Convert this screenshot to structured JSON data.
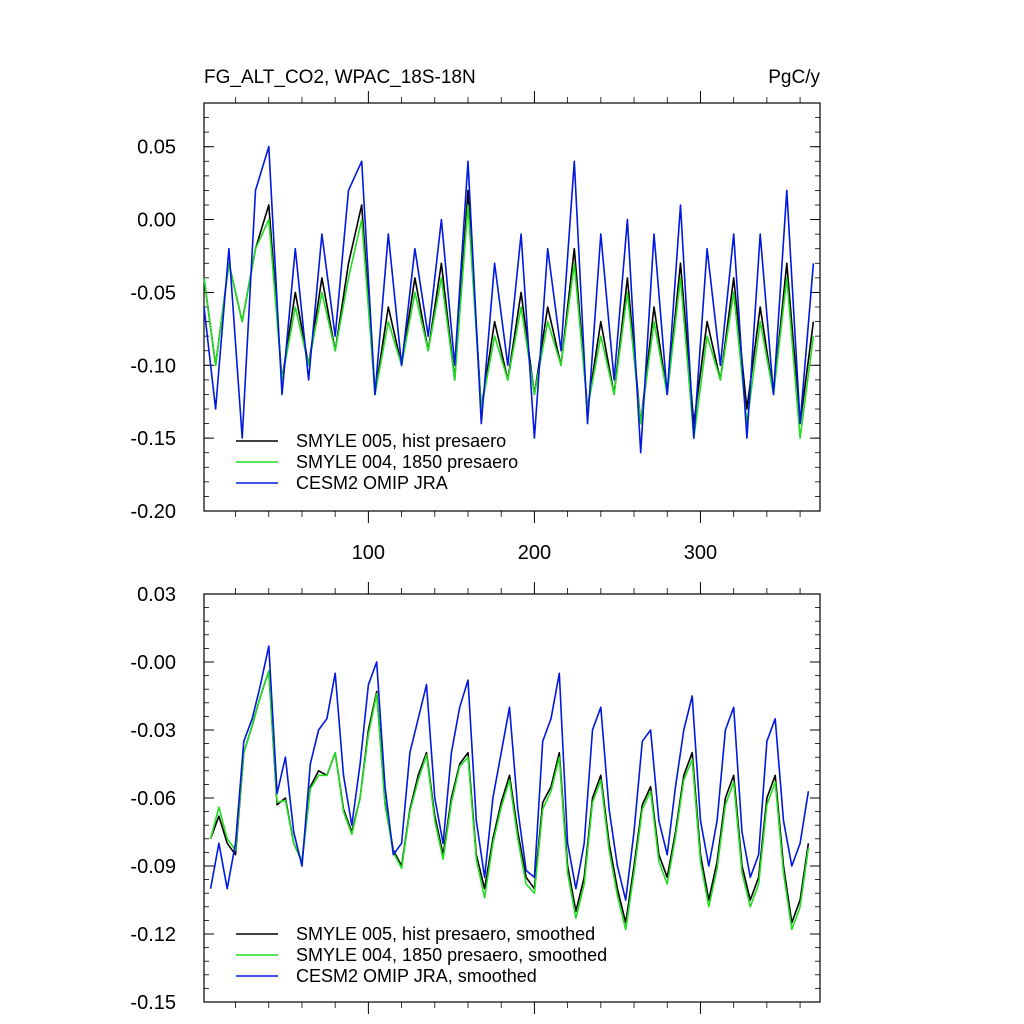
{
  "chart_data": [
    {
      "type": "line",
      "title": "FG_ALT_CO2, WPAC_18S-18N",
      "units": "PgC/y",
      "xlim": [
        1,
        372
      ],
      "ylim": [
        -0.2,
        0.08
      ],
      "yticks": [
        -0.2,
        -0.15,
        -0.1,
        -0.05,
        0.0,
        0.05
      ],
      "ytick_labels": [
        "-0.20",
        "-0.15",
        "-0.10",
        "-0.05",
        "0.00",
        "0.05"
      ],
      "xticks": [
        100,
        200,
        300
      ],
      "xtick_labels": [
        "100",
        "200",
        "300"
      ],
      "legend_position": "bottom-left",
      "series_colors": [
        "#000000",
        "#22dd22",
        "#0018e0"
      ],
      "series": [
        {
          "name": "SMYLE 005, hist presaero",
          "color": "#000000",
          "x": [
            1,
            8,
            16,
            24,
            32,
            40,
            48,
            56,
            64,
            72,
            80,
            88,
            96,
            104,
            112,
            120,
            128,
            136,
            144,
            152,
            160,
            168,
            176,
            184,
            192,
            200,
            208,
            216,
            224,
            232,
            240,
            248,
            256,
            264,
            272,
            280,
            288,
            296,
            304,
            312,
            320,
            328,
            336,
            344,
            352,
            360,
            368
          ],
          "values": [
            -0.04,
            -0.1,
            -0.03,
            -0.07,
            -0.02,
            0.01,
            -0.11,
            -0.05,
            -0.1,
            -0.04,
            -0.09,
            -0.03,
            0.01,
            -0.12,
            -0.06,
            -0.1,
            -0.04,
            -0.09,
            -0.03,
            -0.11,
            0.02,
            -0.13,
            -0.07,
            -0.11,
            -0.05,
            -0.12,
            -0.06,
            -0.1,
            -0.02,
            -0.13,
            -0.07,
            -0.12,
            -0.04,
            -0.14,
            -0.06,
            -0.12,
            -0.03,
            -0.14,
            -0.07,
            -0.11,
            -0.04,
            -0.13,
            -0.06,
            -0.12,
            -0.03,
            -0.14,
            -0.07
          ]
        },
        {
          "name": "SMYLE 004, 1850 presaero",
          "color": "#22dd22",
          "x": [
            1,
            8,
            16,
            24,
            32,
            40,
            48,
            56,
            64,
            72,
            80,
            88,
            96,
            104,
            112,
            120,
            128,
            136,
            144,
            152,
            160,
            168,
            176,
            184,
            192,
            200,
            208,
            216,
            224,
            232,
            240,
            248,
            256,
            264,
            272,
            280,
            288,
            296,
            304,
            312,
            320,
            328,
            336,
            344,
            352,
            360,
            368
          ],
          "values": [
            -0.04,
            -0.1,
            -0.03,
            -0.07,
            -0.02,
            0.0,
            -0.11,
            -0.06,
            -0.1,
            -0.05,
            -0.09,
            -0.04,
            0.0,
            -0.12,
            -0.07,
            -0.1,
            -0.05,
            -0.09,
            -0.04,
            -0.11,
            0.01,
            -0.13,
            -0.08,
            -0.11,
            -0.06,
            -0.12,
            -0.07,
            -0.1,
            -0.03,
            -0.13,
            -0.08,
            -0.12,
            -0.05,
            -0.14,
            -0.07,
            -0.12,
            -0.04,
            -0.15,
            -0.08,
            -0.11,
            -0.05,
            -0.14,
            -0.07,
            -0.12,
            -0.04,
            -0.15,
            -0.08
          ]
        },
        {
          "name": "CESM2 OMIP JRA",
          "color": "#0018e0",
          "x": [
            1,
            8,
            16,
            24,
            32,
            40,
            48,
            56,
            64,
            72,
            80,
            88,
            96,
            104,
            112,
            120,
            128,
            136,
            144,
            152,
            160,
            168,
            176,
            184,
            192,
            200,
            208,
            216,
            224,
            232,
            240,
            248,
            256,
            264,
            272,
            280,
            288,
            296,
            304,
            312,
            320,
            328,
            336,
            344,
            352,
            360,
            368
          ],
          "values": [
            -0.06,
            -0.13,
            -0.02,
            -0.15,
            0.02,
            0.05,
            -0.12,
            -0.02,
            -0.11,
            -0.01,
            -0.08,
            0.02,
            0.04,
            -0.12,
            -0.01,
            -0.1,
            -0.02,
            -0.08,
            0.0,
            -0.1,
            0.04,
            -0.14,
            -0.03,
            -0.1,
            -0.01,
            -0.15,
            -0.02,
            -0.09,
            0.04,
            -0.14,
            -0.01,
            -0.11,
            0.0,
            -0.16,
            -0.01,
            -0.12,
            0.01,
            -0.15,
            -0.02,
            -0.1,
            -0.01,
            -0.15,
            -0.01,
            -0.12,
            0.02,
            -0.14,
            -0.03
          ]
        }
      ]
    },
    {
      "type": "line",
      "ylim": [
        -0.15,
        0.03
      ],
      "yticks": [
        -0.15,
        -0.12,
        -0.09,
        -0.06,
        -0.03,
        0.0,
        0.03
      ],
      "ytick_labels": [
        "-0.15",
        "-0.12",
        "-0.09",
        "-0.06",
        "-0.03",
        "-0.00",
        "0.03"
      ],
      "xlim": [
        1,
        372
      ],
      "xticks": [
        100,
        200,
        300
      ],
      "legend_position": "bottom-left",
      "series": [
        {
          "name": "SMYLE 005, hist presaero, smoothed",
          "color": "#000000",
          "x": [
            5,
            10,
            15,
            20,
            25,
            30,
            35,
            40,
            45,
            50,
            55,
            60,
            65,
            70,
            75,
            80,
            85,
            90,
            95,
            100,
            105,
            110,
            115,
            120,
            125,
            130,
            135,
            140,
            145,
            150,
            155,
            160,
            165,
            170,
            175,
            180,
            185,
            190,
            195,
            200,
            205,
            210,
            215,
            220,
            225,
            230,
            235,
            240,
            245,
            250,
            255,
            260,
            265,
            270,
            275,
            280,
            285,
            290,
            295,
            300,
            305,
            310,
            315,
            320,
            325,
            330,
            335,
            340,
            345,
            350,
            355,
            360,
            365
          ],
          "values": [
            -0.078,
            -0.068,
            -0.08,
            -0.085,
            -0.04,
            -0.028,
            -0.015,
            -0.004,
            -0.063,
            -0.06,
            -0.08,
            -0.088,
            -0.055,
            -0.048,
            -0.05,
            -0.04,
            -0.065,
            -0.075,
            -0.06,
            -0.03,
            -0.013,
            -0.062,
            -0.083,
            -0.09,
            -0.065,
            -0.05,
            -0.04,
            -0.068,
            -0.085,
            -0.06,
            -0.045,
            -0.04,
            -0.085,
            -0.1,
            -0.078,
            -0.062,
            -0.05,
            -0.075,
            -0.095,
            -0.1,
            -0.062,
            -0.055,
            -0.04,
            -0.09,
            -0.11,
            -0.095,
            -0.06,
            -0.05,
            -0.08,
            -0.1,
            -0.115,
            -0.09,
            -0.063,
            -0.055,
            -0.085,
            -0.095,
            -0.075,
            -0.05,
            -0.04,
            -0.085,
            -0.105,
            -0.088,
            -0.06,
            -0.05,
            -0.09,
            -0.105,
            -0.095,
            -0.06,
            -0.05,
            -0.09,
            -0.115,
            -0.105,
            -0.08
          ]
        },
        {
          "name": "SMYLE 004, 1850 presaero, smoothed",
          "color": "#22dd22",
          "x": [
            5,
            10,
            15,
            20,
            25,
            30,
            35,
            40,
            45,
            50,
            55,
            60,
            65,
            70,
            75,
            80,
            85,
            90,
            95,
            100,
            105,
            110,
            115,
            120,
            125,
            130,
            135,
            140,
            145,
            150,
            155,
            160,
            165,
            170,
            175,
            180,
            185,
            190,
            195,
            200,
            205,
            210,
            215,
            220,
            225,
            230,
            235,
            240,
            245,
            250,
            255,
            260,
            265,
            270,
            275,
            280,
            285,
            290,
            295,
            300,
            305,
            310,
            315,
            320,
            325,
            330,
            335,
            340,
            345,
            350,
            355,
            360,
            365
          ],
          "values": [
            -0.078,
            -0.064,
            -0.078,
            -0.083,
            -0.04,
            -0.028,
            -0.015,
            -0.004,
            -0.062,
            -0.061,
            -0.08,
            -0.088,
            -0.056,
            -0.05,
            -0.05,
            -0.04,
            -0.066,
            -0.076,
            -0.06,
            -0.032,
            -0.014,
            -0.063,
            -0.084,
            -0.091,
            -0.066,
            -0.052,
            -0.041,
            -0.07,
            -0.087,
            -0.062,
            -0.046,
            -0.042,
            -0.087,
            -0.104,
            -0.08,
            -0.064,
            -0.052,
            -0.078,
            -0.098,
            -0.102,
            -0.065,
            -0.057,
            -0.042,
            -0.093,
            -0.113,
            -0.098,
            -0.062,
            -0.052,
            -0.083,
            -0.103,
            -0.118,
            -0.093,
            -0.065,
            -0.057,
            -0.088,
            -0.098,
            -0.077,
            -0.052,
            -0.043,
            -0.088,
            -0.108,
            -0.091,
            -0.063,
            -0.053,
            -0.093,
            -0.108,
            -0.098,
            -0.063,
            -0.053,
            -0.093,
            -0.118,
            -0.108,
            -0.082
          ]
        },
        {
          "name": "CESM2 OMIP JRA, smoothed",
          "color": "#0018e0",
          "x": [
            5,
            10,
            15,
            20,
            25,
            30,
            35,
            40,
            45,
            50,
            55,
            60,
            65,
            70,
            75,
            80,
            85,
            90,
            95,
            100,
            105,
            110,
            115,
            120,
            125,
            130,
            135,
            140,
            145,
            150,
            155,
            160,
            165,
            170,
            175,
            180,
            185,
            190,
            195,
            200,
            205,
            210,
            215,
            220,
            225,
            230,
            235,
            240,
            245,
            250,
            255,
            260,
            265,
            270,
            275,
            280,
            285,
            290,
            295,
            300,
            305,
            310,
            315,
            320,
            325,
            330,
            335,
            340,
            345,
            350,
            355,
            360,
            365
          ],
          "values": [
            -0.1,
            -0.08,
            -0.1,
            -0.08,
            -0.035,
            -0.025,
            -0.01,
            0.007,
            -0.058,
            -0.042,
            -0.075,
            -0.09,
            -0.045,
            -0.03,
            -0.025,
            -0.005,
            -0.05,
            -0.072,
            -0.045,
            -0.01,
            0.0,
            -0.055,
            -0.085,
            -0.08,
            -0.04,
            -0.025,
            -0.01,
            -0.06,
            -0.08,
            -0.04,
            -0.02,
            -0.008,
            -0.07,
            -0.095,
            -0.06,
            -0.04,
            -0.02,
            -0.065,
            -0.092,
            -0.095,
            -0.035,
            -0.025,
            -0.005,
            -0.08,
            -0.1,
            -0.08,
            -0.03,
            -0.02,
            -0.065,
            -0.09,
            -0.105,
            -0.075,
            -0.035,
            -0.03,
            -0.07,
            -0.085,
            -0.055,
            -0.03,
            -0.015,
            -0.07,
            -0.09,
            -0.07,
            -0.03,
            -0.02,
            -0.075,
            -0.095,
            -0.085,
            -0.035,
            -0.025,
            -0.07,
            -0.09,
            -0.08,
            -0.057
          ]
        }
      ]
    }
  ]
}
